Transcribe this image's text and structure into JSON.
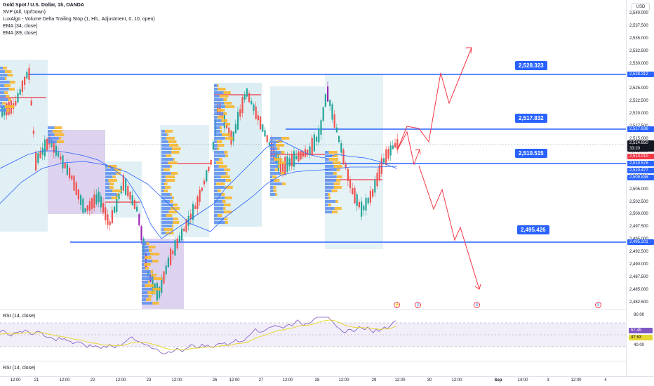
{
  "legend": {
    "symbol": "Gold Spot / U.S. Dollar, 1h, OANDA",
    "ind1": "SVP (All, Up/Down)",
    "ind2": "LuxAlgo - Volume Delta Trailing Stop (1, H/L, Adjustment, 0, 10, open)",
    "ind3": "EMA (34, close)",
    "ind4": "EMA (89, close)"
  },
  "currency": "USD",
  "price_ticks": [
    "2,540.000",
    "2,537.500",
    "2,535.000",
    "2,532.500",
    "2,530.000",
    "2,527.500",
    "2,525.000",
    "2,522.500",
    "2,520.000",
    "2,517.500",
    "2,515.000",
    "2,512.500",
    "2,510.000",
    "2,507.500",
    "2,505.000",
    "2,502.500",
    "2,500.000",
    "2,497.500",
    "2,495.000",
    "2,492.500",
    "2,490.000",
    "2,487.500",
    "2,485.000",
    "2,482.500"
  ],
  "price_tags": {
    "level_high": "2,528.312",
    "level_mid": "2,517.636",
    "last_price": "2,514.650",
    "countdown": "33:20",
    "red_tag": "2,513.010",
    "blue1": "2,510.578",
    "blue2": "2,510.477",
    "blue3": "2,509.838",
    "level_low": "2,495.201"
  },
  "levels": {
    "l1": "2,528.323",
    "l2": "2,517.832",
    "l3": "2,510.515",
    "l4": "2,495.426"
  },
  "rsi": {
    "label1": "RSI (14, close)",
    "label2": "RSI (14, close)",
    "ticks": [
      "80.00",
      "40.00"
    ],
    "value": "57.49",
    "ma_value": "47.63"
  },
  "time_labels": [
    "12:00",
    "21",
    "12:00",
    "22",
    "12:00",
    "23",
    "12:00",
    "26",
    "12:00",
    "27",
    "12:00",
    "28",
    "12:00",
    "29",
    "12:00",
    "30",
    "12:00",
    "Sep",
    "14:00",
    "3",
    "12:00",
    "4"
  ],
  "colors": {
    "up": "#26a69a",
    "down": "#ef5350",
    "purple": "#9c27b0",
    "level": "#2962ff",
    "ema": "#2962ff",
    "arrow": "#f23645"
  }
}
